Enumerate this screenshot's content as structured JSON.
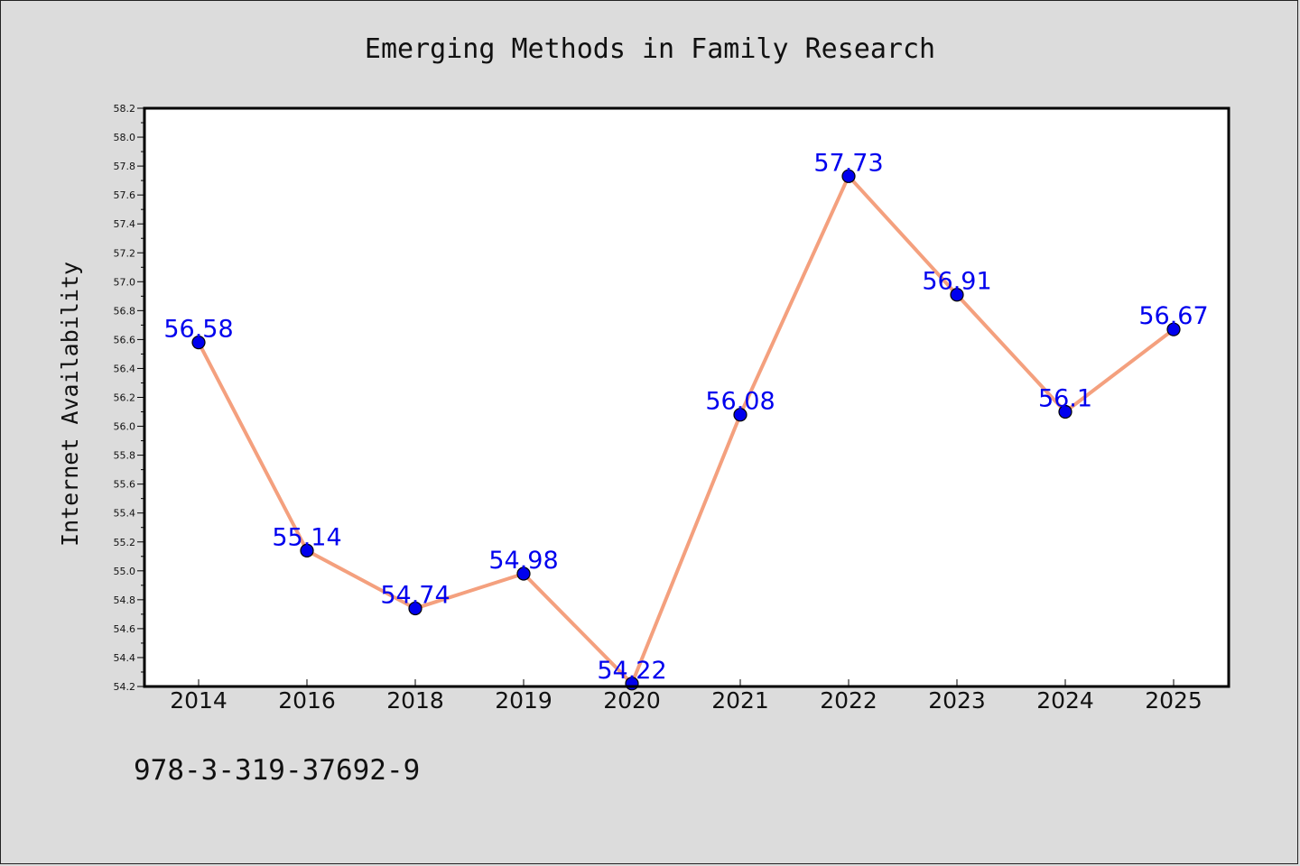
{
  "chart_data": {
    "type": "line",
    "title": "Emerging Methods in Family Research",
    "xlabel": "",
    "ylabel": "Internet Availability",
    "categories": [
      "2014",
      "2016",
      "2018",
      "2019",
      "2020",
      "2021",
      "2022",
      "2023",
      "2024",
      "2025"
    ],
    "values": [
      56.58,
      55.14,
      54.74,
      54.98,
      54.22,
      56.08,
      57.73,
      56.91,
      56.1,
      56.67
    ],
    "data_labels": [
      "56.58",
      "55.14",
      "54.74",
      "54.98",
      "54.22",
      "56.08",
      "57.73",
      "56.91",
      "56.1",
      "56.67"
    ],
    "ylim": [
      54.2,
      58.2
    ],
    "yticks": [
      54.2,
      54.4,
      54.6,
      54.8,
      55.0,
      55.2,
      55.4,
      55.6,
      55.8,
      56.0,
      56.2,
      56.4,
      56.6,
      56.8,
      57.0,
      57.2,
      57.4,
      57.6,
      57.8,
      58.0,
      58.2
    ],
    "grid": false,
    "line_color": "#f4a07e",
    "marker_color": "#0000ee",
    "label_color": "#0000ee"
  },
  "footer": {
    "isbn": "978-3-319-37692-9"
  }
}
